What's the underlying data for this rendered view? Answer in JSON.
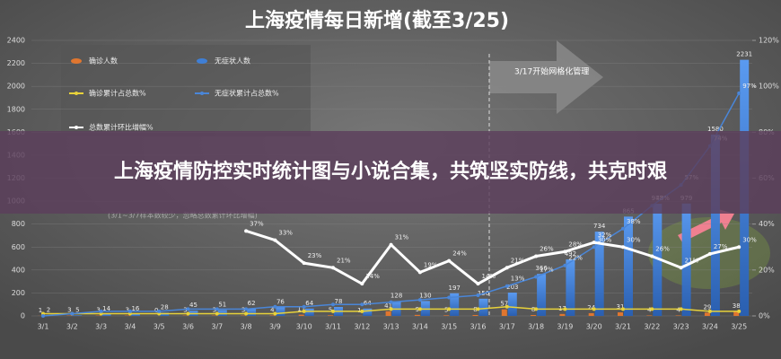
{
  "overlay_title": "上海疫情防控实时统计图与小说合集，共筑坚实防线，共克时艰",
  "chart_data": {
    "type": "combo",
    "title": "上海疫情每日新增(截至3/25)",
    "annotations": [
      "3/17开始网格化管理",
      "(3/1~3/7样本数较少，忽略总数累计环比增幅)"
    ],
    "categories": [
      "3/1",
      "3/2",
      "3/3",
      "3/4",
      "3/5",
      "3/6",
      "3/7",
      "3/8",
      "3/9",
      "3/10",
      "3/11",
      "3/12",
      "3/13",
      "3/14",
      "3/15",
      "3/16",
      "3/17",
      "3/18",
      "3/19",
      "3/20",
      "3/21",
      "3/22",
      "3/23",
      "3/24",
      "3/25"
    ],
    "ylim": [
      0,
      2400
    ],
    "yticks": [
      0,
      200,
      400,
      600,
      800,
      1000,
      1200,
      1400,
      1600,
      1800,
      2000,
      2200,
      2400
    ],
    "y2lim": [
      0,
      120
    ],
    "y2ticks": [
      {
        "value": 0,
        "label": "0%"
      },
      {
        "value": 20,
        "label": "20%"
      },
      {
        "value": 40,
        "label": "40%"
      },
      {
        "value": 60,
        "label": "60%"
      },
      {
        "value": 80,
        "label": "80%"
      },
      {
        "value": 100,
        "label": "100%"
      },
      {
        "value": 120,
        "label": "120%"
      }
    ],
    "grid": true,
    "series": [
      {
        "name": "确诊人数",
        "type": "bar",
        "color": "#e0762f",
        "values": [
          1,
          3,
          3,
          3,
          0,
          3,
          3,
          3,
          4,
          11,
          5,
          1,
          41,
          9,
          5,
          8,
          57,
          8,
          17,
          24,
          31,
          4,
          4,
          29,
          38
        ]
      },
      {
        "name": "无症状人数",
        "type": "bar",
        "color": "#3f7fd6",
        "values": [
          2,
          5,
          14,
          16,
          28,
          45,
          51,
          62,
          76,
          64,
          78,
          64,
          128,
          130,
          197,
          150,
          203,
          366,
          492,
          734,
          865,
          977,
          979,
          1580,
          2231
        ]
      },
      {
        "name": "确诊累计占总数%",
        "type": "line",
        "axis": "y2",
        "color": "#e8d23a",
        "values": [
          1,
          1,
          1,
          1,
          1,
          1,
          1,
          1,
          1,
          2,
          2,
          2,
          3,
          3,
          3,
          3,
          4,
          3,
          3,
          3,
          3,
          3,
          3,
          2,
          2
        ]
      },
      {
        "name": "无症状累计占总数%",
        "type": "line",
        "axis": "y2",
        "color": "#4a86d8",
        "values": [
          0,
          1,
          2,
          2,
          2,
          3,
          3,
          3,
          4,
          4,
          5,
          5,
          6,
          7,
          8,
          9,
          13,
          17,
          22,
          30,
          38,
          48,
          57,
          74,
          97
        ],
        "value_labels": [
          null,
          null,
          null,
          null,
          null,
          null,
          null,
          null,
          null,
          null,
          null,
          null,
          null,
          null,
          null,
          null,
          "13%",
          "17%",
          "22%",
          "30%",
          "38%",
          "48%",
          "57%",
          "74%",
          "97%"
        ]
      },
      {
        "name": "总数累计环比增幅%",
        "type": "line",
        "axis": "y2",
        "color": "#ffffff",
        "values": [
          null,
          null,
          null,
          null,
          null,
          null,
          null,
          37,
          33,
          23,
          21,
          14,
          31,
          19,
          24,
          14,
          21,
          26,
          28,
          32,
          30,
          26,
          21,
          27,
          30
        ],
        "value_labels": [
          null,
          null,
          null,
          null,
          null,
          null,
          null,
          "37%",
          "33%",
          "23%",
          "21%",
          "14%",
          "31%",
          "19%",
          "24%",
          "14%",
          "21%",
          "26%",
          "28%",
          "32%",
          "30%",
          "26%",
          "21%",
          "27%",
          "30%"
        ]
      }
    ]
  }
}
